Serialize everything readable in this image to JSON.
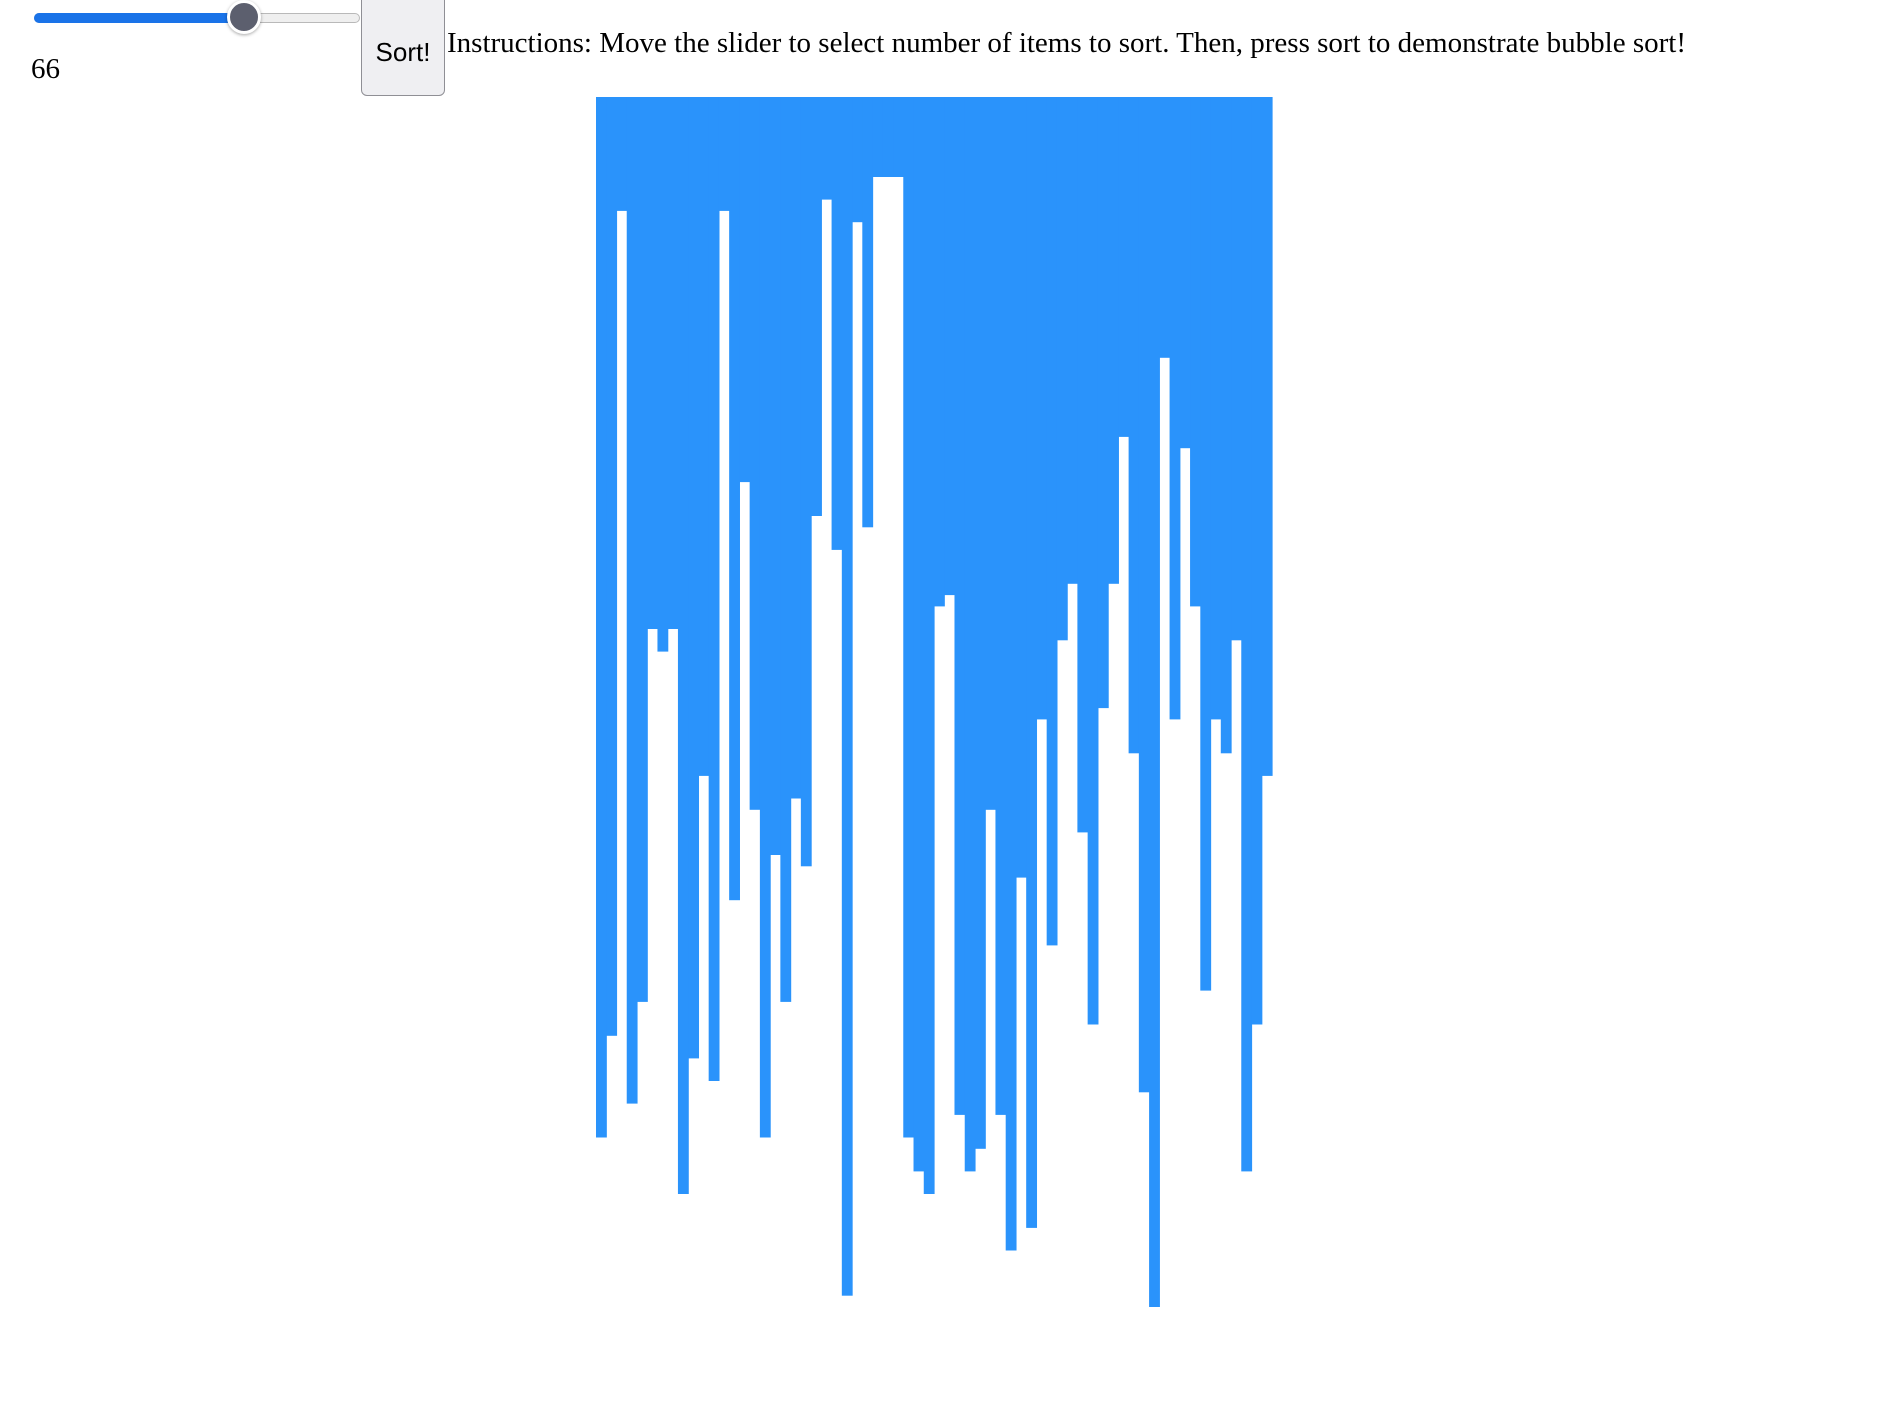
{
  "controls": {
    "slider_value": 66,
    "slider_min": 0,
    "slider_max": 100,
    "count_label": "66",
    "sort_label": "Sort!",
    "instructions": "Instructions: Move the slider to select number of items to sort. Then, press sort to demonstrate bubble sort!"
  },
  "colors": {
    "bar": "#2a93fb",
    "slider_fill": "#1a73e8",
    "slider_thumb": "#5c5f6e"
  },
  "chart_data": {
    "type": "bar",
    "orientation": "hanging",
    "item_count": 66,
    "values": [
      0.85,
      0.76,
      0.03,
      0.82,
      0.73,
      0.4,
      0.42,
      0.4,
      0.9,
      0.78,
      0.53,
      0.8,
      0.03,
      0.64,
      0.27,
      0.56,
      0.85,
      0.6,
      0.73,
      0.55,
      0.61,
      0.3,
      0.02,
      0.33,
      0.99,
      0.04,
      0.31,
      0.0,
      0.0,
      0.0,
      0.85,
      0.88,
      0.9,
      0.38,
      0.37,
      0.83,
      0.88,
      0.86,
      0.56,
      0.83,
      0.95,
      0.62,
      0.93,
      0.48,
      0.68,
      0.41,
      0.36,
      0.58,
      0.75,
      0.47,
      0.36,
      0.23,
      0.51,
      0.81,
      1.0,
      0.16,
      0.48,
      0.24,
      0.38,
      0.72,
      0.48,
      0.51,
      0.41,
      0.88,
      0.75,
      0.53
    ]
  }
}
